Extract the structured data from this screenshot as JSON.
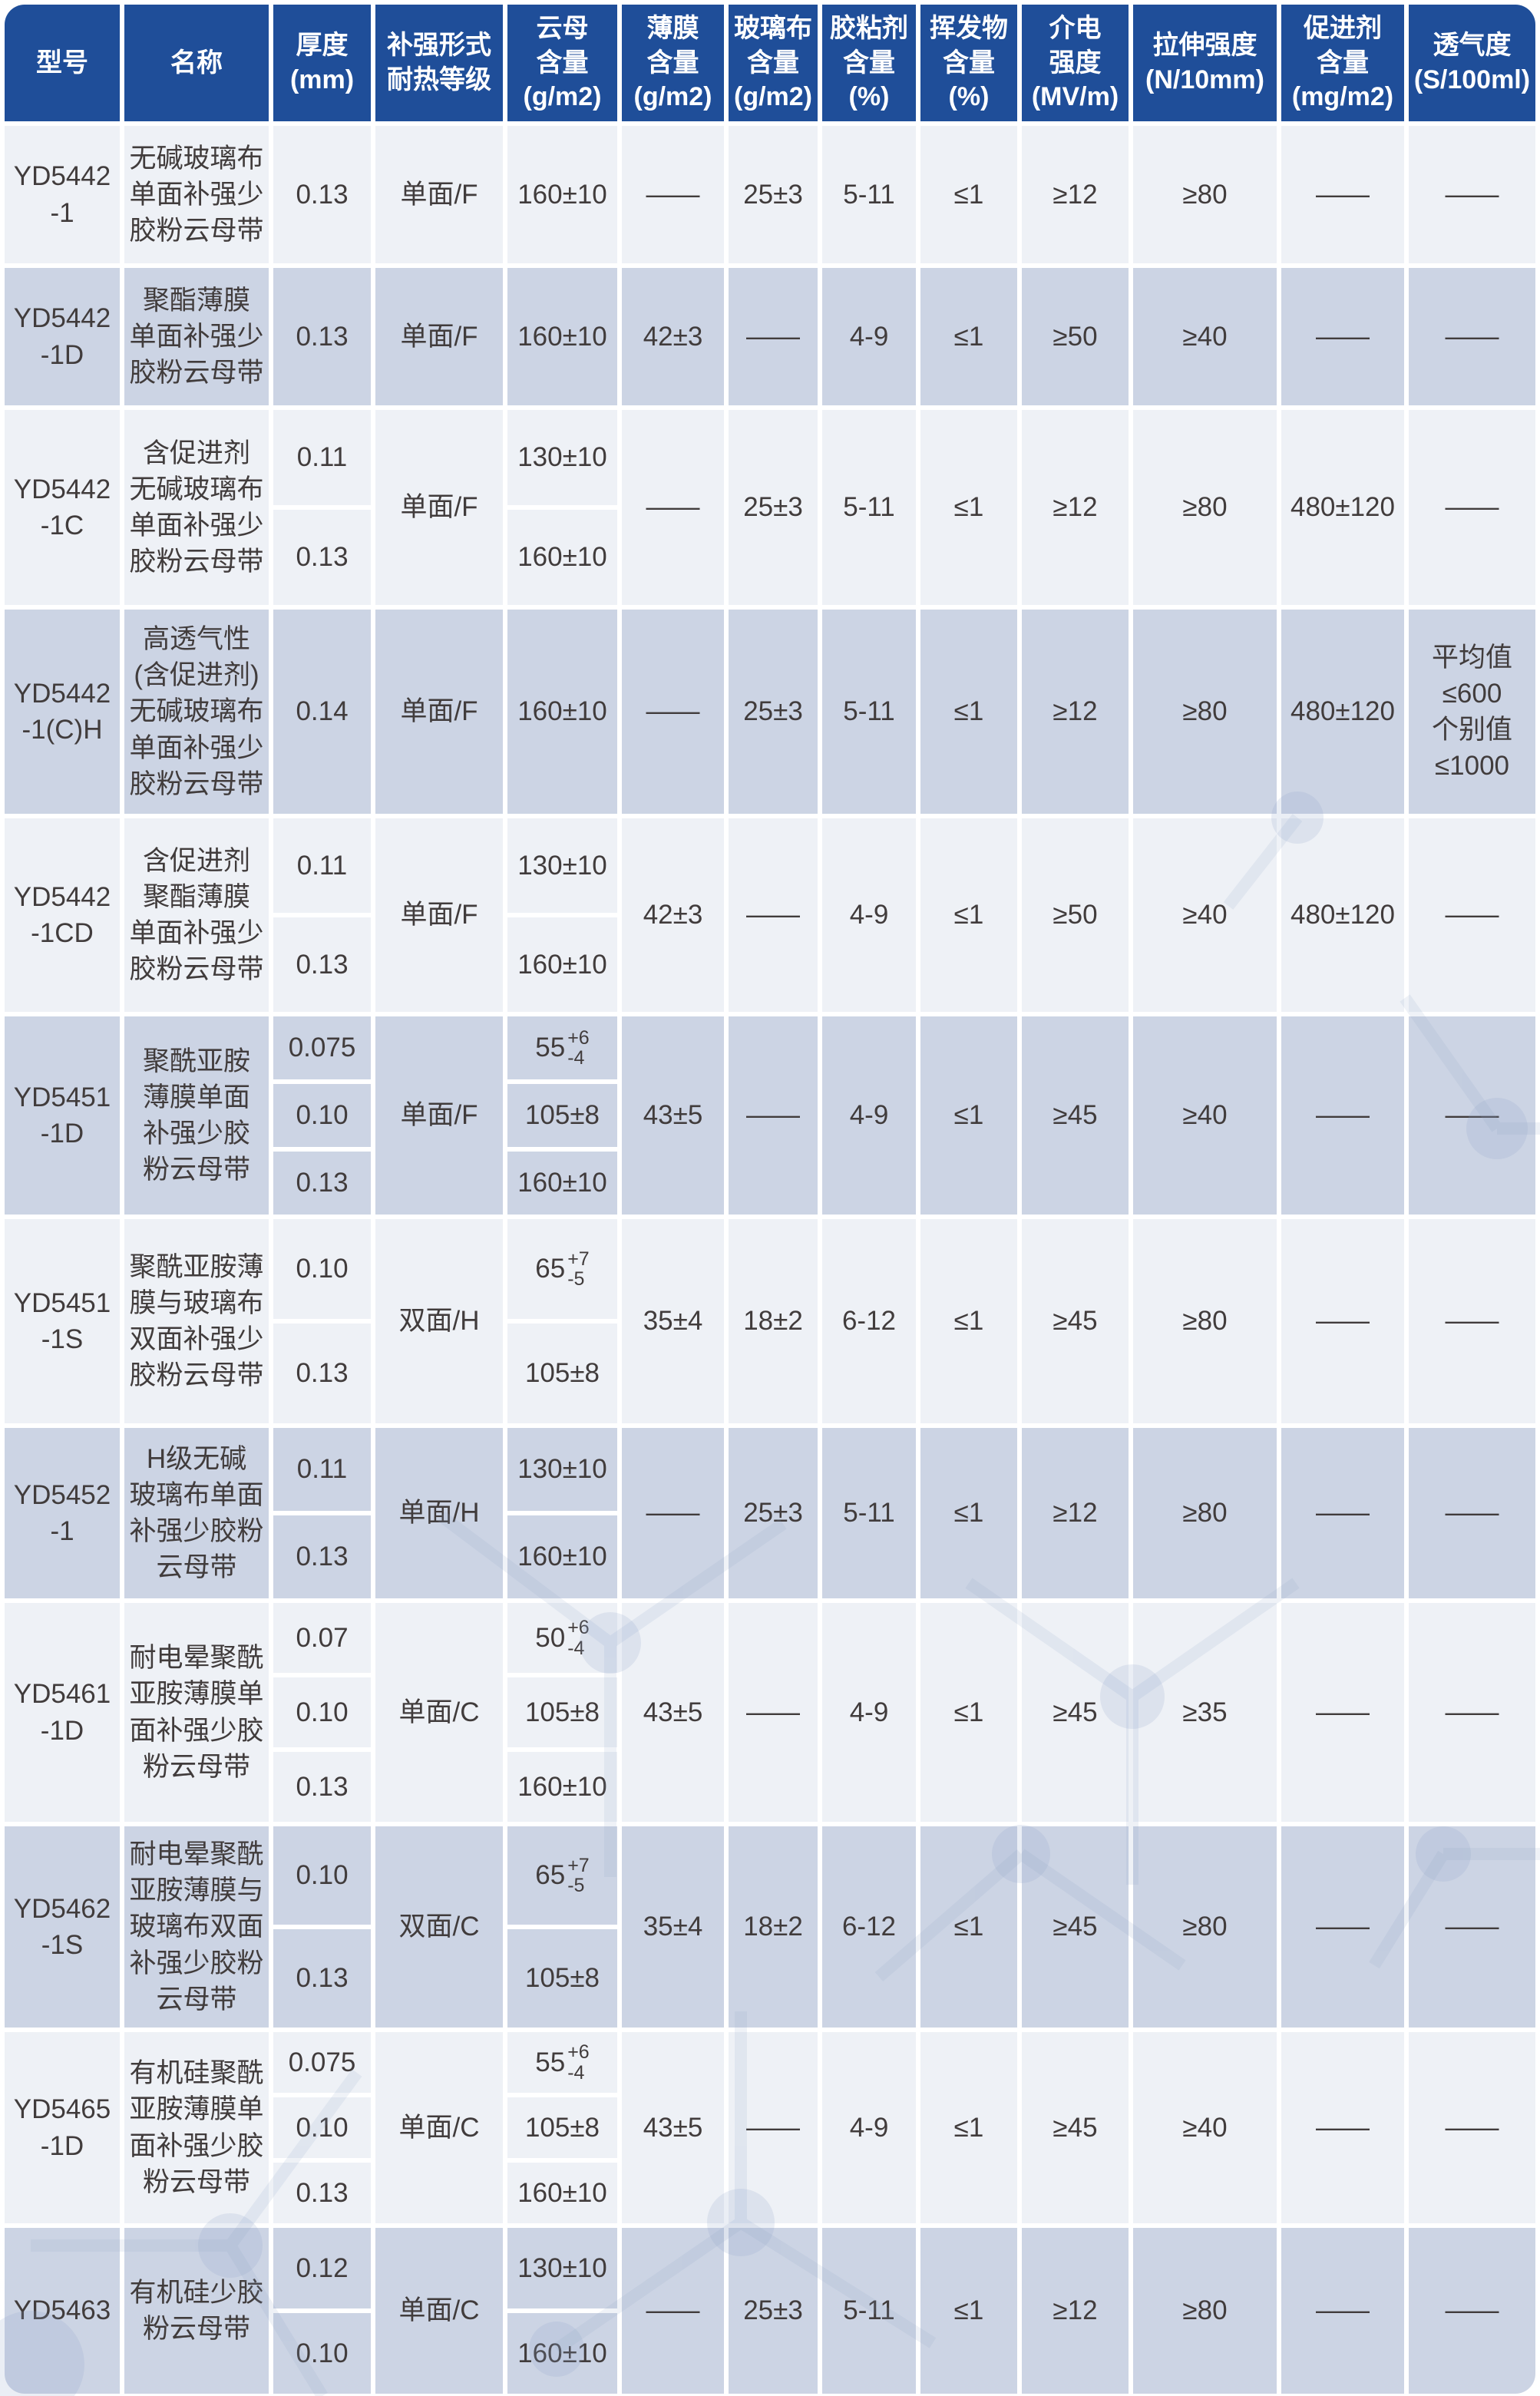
{
  "colors": {
    "header_bg": "#1f4e99",
    "row_light": "#eef1f6",
    "row_dark": "#ccd4e4",
    "text": "#413c3c",
    "watermark": "#8ba3c7"
  },
  "columns": [
    {
      "id": "model",
      "label": "型号"
    },
    {
      "id": "name",
      "label": "名称"
    },
    {
      "id": "thickness",
      "label": "厚度\n(mm)"
    },
    {
      "id": "reinforce",
      "label": "补强形式\n耐热等级"
    },
    {
      "id": "mica",
      "label": "云母\n含量\n(g/m2)"
    },
    {
      "id": "film",
      "label": "薄膜\n含量\n(g/m2)"
    },
    {
      "id": "glass",
      "label": "玻璃布\n含量\n(g/m2)"
    },
    {
      "id": "adhesive",
      "label": "胶粘剂\n含量\n(%)"
    },
    {
      "id": "volatile",
      "label": "挥发物\n含量\n(%)"
    },
    {
      "id": "dielectric",
      "label": "介电\n强度\n(MV/m)"
    },
    {
      "id": "tensile",
      "label": "拉伸强度\n(N/10mm)"
    },
    {
      "id": "accelerator",
      "label": "促进剂\n含量\n(mg/m2)"
    },
    {
      "id": "permeability",
      "label": "透气度\n(S/100ml)"
    }
  ],
  "rows": [
    {
      "model": "YD5442\n-1",
      "name": "无碱玻璃布\n单面补强少\n胶粉云母带",
      "thickness": [
        "0.13"
      ],
      "reinforce": "单面/F",
      "mica": [
        {
          "t": "160±10"
        }
      ],
      "film": "——",
      "glass": "25±3",
      "adhesive": "5-11",
      "volatile": "≤1",
      "dielectric": "≥12",
      "tensile": "≥80",
      "accelerator": "——",
      "permeability": "——"
    },
    {
      "model": "YD5442\n-1D",
      "name": "聚酯薄膜\n单面补强少\n胶粉云母带",
      "thickness": [
        "0.13"
      ],
      "reinforce": "单面/F",
      "mica": [
        {
          "t": "160±10"
        }
      ],
      "film": "42±3",
      "glass": "——",
      "adhesive": "4-9",
      "volatile": "≤1",
      "dielectric": "≥50",
      "tensile": "≥40",
      "accelerator": "——",
      "permeability": "——"
    },
    {
      "model": "YD5442\n-1C",
      "name": "含促进剂\n无碱玻璃布\n单面补强少\n胶粉云母带",
      "thickness": [
        "0.11",
        "0.13"
      ],
      "reinforce": "单面/F",
      "mica": [
        {
          "t": "130±10"
        },
        {
          "t": "160±10"
        }
      ],
      "film": "——",
      "glass": "25±3",
      "adhesive": "5-11",
      "volatile": "≤1",
      "dielectric": "≥12",
      "tensile": "≥80",
      "accelerator": "480±120",
      "permeability": "——"
    },
    {
      "model": "YD5442\n-1(C)H",
      "name": "高透气性\n(含促进剂)\n无碱玻璃布\n单面补强少\n胶粉云母带",
      "thickness": [
        "0.14"
      ],
      "reinforce": "单面/F",
      "mica": [
        {
          "t": "160±10"
        }
      ],
      "film": "——",
      "glass": "25±3",
      "adhesive": "5-11",
      "volatile": "≤1",
      "dielectric": "≥12",
      "tensile": "≥80",
      "accelerator": "480±120",
      "permeability": "平均值\n≤600\n个别值\n≤1000"
    },
    {
      "model": "YD5442\n-1CD",
      "name": "含促进剂\n聚酯薄膜\n单面补强少\n胶粉云母带",
      "thickness": [
        "0.11",
        "0.13"
      ],
      "reinforce": "单面/F",
      "mica": [
        {
          "t": "130±10"
        },
        {
          "t": "160±10"
        }
      ],
      "film": "42±3",
      "glass": "——",
      "adhesive": "4-9",
      "volatile": "≤1",
      "dielectric": "≥50",
      "tensile": "≥40",
      "accelerator": "480±120",
      "permeability": "——"
    },
    {
      "model": "YD5451\n-1D",
      "name": "聚酰亚胺\n薄膜单面\n补强少胶\n粉云母带",
      "thickness": [
        "0.075",
        "0.10",
        "0.13"
      ],
      "reinforce": "单面/F",
      "mica": [
        {
          "t": "55",
          "sup": "+6",
          "sub": "-4"
        },
        {
          "t": "105±8"
        },
        {
          "t": "160±10"
        }
      ],
      "film": "43±5",
      "glass": "——",
      "adhesive": "4-9",
      "volatile": "≤1",
      "dielectric": "≥45",
      "tensile": "≥40",
      "accelerator": "——",
      "permeability": "——"
    },
    {
      "model": "YD5451\n-1S",
      "name": "聚酰亚胺薄\n膜与玻璃布\n双面补强少\n胶粉云母带",
      "thickness": [
        "0.10",
        "0.13"
      ],
      "reinforce": "双面/H",
      "mica": [
        {
          "t": "65",
          "sup": "+7",
          "sub": "-5"
        },
        {
          "t": "105±8"
        }
      ],
      "film": "35±4",
      "glass": "18±2",
      "adhesive": "6-12",
      "volatile": "≤1",
      "dielectric": "≥45",
      "tensile": "≥80",
      "accelerator": "——",
      "permeability": "——"
    },
    {
      "model": "YD5452\n-1",
      "name": "H级无碱\n玻璃布单面\n补强少胶粉\n云母带",
      "thickness": [
        "0.11",
        "0.13"
      ],
      "reinforce": "单面/H",
      "mica": [
        {
          "t": "130±10"
        },
        {
          "t": "160±10"
        }
      ],
      "film": "——",
      "glass": "25±3",
      "adhesive": "5-11",
      "volatile": "≤1",
      "dielectric": "≥12",
      "tensile": "≥80",
      "accelerator": "——",
      "permeability": "——"
    },
    {
      "model": "YD5461\n-1D",
      "name": "耐电晕聚酰\n亚胺薄膜单\n面补强少胶\n粉云母带",
      "thickness": [
        "0.07",
        "0.10",
        "0.13"
      ],
      "reinforce": "单面/C",
      "mica": [
        {
          "t": "50",
          "sup": "+6",
          "sub": "-4"
        },
        {
          "t": "105±8"
        },
        {
          "t": "160±10"
        }
      ],
      "film": "43±5",
      "glass": "——",
      "adhesive": "4-9",
      "volatile": "≤1",
      "dielectric": "≥45",
      "tensile": "≥35",
      "accelerator": "——",
      "permeability": "——"
    },
    {
      "model": "YD5462\n-1S",
      "name": "耐电晕聚酰\n亚胺薄膜与\n玻璃布双面\n补强少胶粉\n云母带",
      "thickness": [
        "0.10",
        "0.13"
      ],
      "reinforce": "双面/C",
      "mica": [
        {
          "t": "65",
          "sup": "+7",
          "sub": "-5"
        },
        {
          "t": "105±8"
        }
      ],
      "film": "35±4",
      "glass": "18±2",
      "adhesive": "6-12",
      "volatile": "≤1",
      "dielectric": "≥45",
      "tensile": "≥80",
      "accelerator": "——",
      "permeability": "——"
    },
    {
      "model": "YD5465\n-1D",
      "name": "有机硅聚酰\n亚胺薄膜单\n面补强少胶\n粉云母带",
      "thickness": [
        "0.075",
        "0.10",
        "0.13"
      ],
      "reinforce": "单面/C",
      "mica": [
        {
          "t": "55",
          "sup": "+6",
          "sub": "-4"
        },
        {
          "t": "105±8"
        },
        {
          "t": "160±10"
        }
      ],
      "film": "43±5",
      "glass": "——",
      "adhesive": "4-9",
      "volatile": "≤1",
      "dielectric": "≥45",
      "tensile": "≥40",
      "accelerator": "——",
      "permeability": "——"
    },
    {
      "model": "YD5463",
      "name": "有机硅少胶\n粉云母带",
      "thickness": [
        "0.12",
        "0.10"
      ],
      "reinforce": "单面/C",
      "mica": [
        {
          "t": "130±10"
        },
        {
          "t": "160±10"
        }
      ],
      "film": "——",
      "glass": "25±3",
      "adhesive": "5-11",
      "volatile": "≤1",
      "dielectric": "≥12",
      "tensile": "≥80",
      "accelerator": "——",
      "permeability": "——"
    }
  ]
}
